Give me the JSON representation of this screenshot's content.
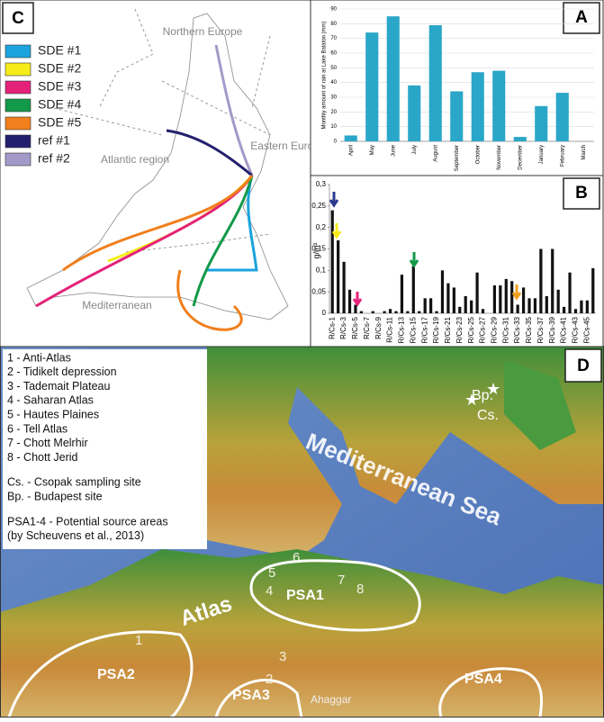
{
  "chart_data": [
    {
      "type": "bar",
      "panel": "A",
      "ylabel": "Monthly amount of rain at Lake Balaton (mm)",
      "categories": [
        "April",
        "May",
        "June",
        "July",
        "August",
        "September",
        "October",
        "November",
        "December",
        "January",
        "February",
        "March"
      ],
      "values": [
        4,
        74,
        85,
        38,
        79,
        34,
        47,
        48,
        3,
        24,
        33,
        0
      ],
      "color": "#2aa6c8",
      "ylim": [
        0,
        90
      ],
      "yticks": [
        0,
        10,
        20,
        30,
        40,
        50,
        60,
        70,
        80,
        90
      ],
      "grid": true
    },
    {
      "type": "bar",
      "panel": "B",
      "ylabel": "g/m²",
      "categories": [
        "R/Cs-1",
        null,
        "R/Cs-3",
        null,
        "R/Cs-5",
        null,
        "R/Cs-7",
        null,
        "R/Cs-9",
        null,
        "R/Cs-11",
        null,
        "R/Cs-13",
        null,
        "R/Cs-15",
        null,
        "R/Cs-17",
        null,
        "R/Cs-19",
        null,
        "R/Cs-21",
        null,
        "R/Cs-23",
        null,
        "R/Cs-25",
        null,
        "R/Cs-27",
        null,
        "R/Cs-29",
        null,
        "R/Cs-31",
        null,
        "R/Cs-33",
        null,
        "R/Cs-35",
        null,
        "R/Cs-37",
        null,
        "R/Cs-39",
        null,
        "R/Cs-41",
        null,
        "R/Cs-43",
        null,
        "R/Cs-45",
        null
      ],
      "values": [
        0.24,
        0.17,
        0.12,
        0.055,
        0.02,
        0.005,
        0,
        0.005,
        0,
        0.005,
        0.01,
        0.005,
        0.09,
        0.005,
        0.11,
        0.005,
        0.035,
        0.035,
        0.005,
        0.1,
        0.07,
        0.06,
        0.015,
        0.04,
        0.03,
        0.095,
        0.01,
        0,
        0.065,
        0.065,
        0.08,
        0.075,
        0.02,
        0.06,
        0.035,
        0.035,
        0.15,
        0.04,
        0.15,
        0.055,
        0.015,
        0.095,
        0.01,
        0.03,
        0.03,
        0.105
      ],
      "color": "#111111",
      "ylim": [
        0,
        0.3
      ],
      "yticks": [
        0,
        {
          "value": 0.05,
          "label": "0,05"
        },
        {
          "value": 0.1,
          "label": "0,1"
        },
        {
          "value": 0.15,
          "label": "0,15"
        },
        {
          "value": 0.2,
          "label": "0,2"
        },
        {
          "value": 0.25,
          "label": "0,25"
        },
        {
          "value": 0.3,
          "label": "0,3"
        }
      ],
      "grid": false
    }
  ],
  "panel_c": {
    "label": "C",
    "legend": [
      {
        "name": "SDE #1",
        "color": "#1ba3dd"
      },
      {
        "name": "SDE #2",
        "color": "#f5ec1a"
      },
      {
        "name": "SDE #3",
        "color": "#e5227a"
      },
      {
        "name": "SDE #4",
        "color": "#13994a"
      },
      {
        "name": "SDE #5",
        "color": "#f07f1c"
      },
      {
        "name": "ref #1",
        "color": "#231f6e"
      },
      {
        "name": "ref #2",
        "color": "#a39ac9"
      }
    ],
    "regions": [
      "Northern Europe",
      "Atlantic region",
      "Eastern Europe",
      "Mediterranean"
    ]
  },
  "panel_d": {
    "label": "D",
    "list": [
      "1 - Anti-Atlas",
      "2 - Tidikelt depression",
      "3 - Tademait Plateau",
      "4 - Saharan Atlas",
      "5 - Hautes Plaines",
      "6 - Tell Atlas",
      "7 - Chott Melrhir",
      "8 - Chott Jerid"
    ],
    "sites": [
      "Cs. - Csopak sampling site",
      "Bp. - Budapest site"
    ],
    "psa": [
      "PSA1-4 - Potential source areas",
      "(by Scheuvens et al., 2013)"
    ],
    "map_labels": {
      "sea": "Mediterranean Sea",
      "atlas": "Atlas",
      "ahaggar": "Ahaggar",
      "bp": "Bp.",
      "cs": "Cs.",
      "psa1": "PSA1",
      "psa2": "PSA2",
      "psa3": "PSA3",
      "psa4": "PSA4"
    },
    "numbers": [
      "1",
      "2",
      "3",
      "4",
      "5",
      "6",
      "7",
      "8"
    ]
  }
}
